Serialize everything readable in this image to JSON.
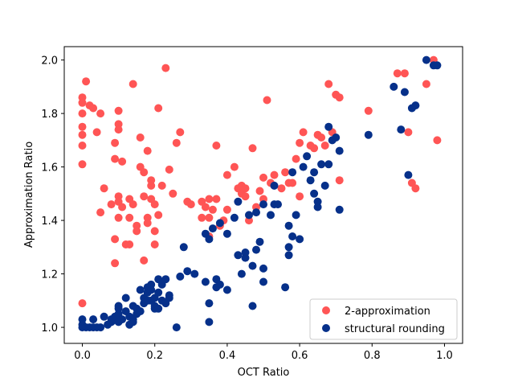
{
  "chart_data": {
    "type": "scatter",
    "title": "",
    "xlabel": "OCT Ratio",
    "ylabel": "Approximation Ratio",
    "xlim": [
      -0.05,
      1.05
    ],
    "ylim": [
      0.94,
      2.05
    ],
    "xticks": [
      0.0,
      0.2,
      0.4,
      0.6,
      0.8,
      1.0
    ],
    "xtick_labels": [
      "0.0",
      "0.2",
      "0.4",
      "0.6",
      "0.8",
      "1.0"
    ],
    "yticks": [
      1.0,
      1.2,
      1.4,
      1.6,
      1.8,
      2.0
    ],
    "ytick_labels": [
      "1.0",
      "1.2",
      "1.4",
      "1.6",
      "1.8",
      "2.0"
    ],
    "grid": false,
    "legend_position": "bottom-right",
    "series": [
      {
        "name": "2-approximation",
        "color": "#ff5555",
        "points": [
          [
            0.0,
            1.84
          ],
          [
            0.0,
            1.86
          ],
          [
            0.0,
            1.8
          ],
          [
            0.0,
            1.75
          ],
          [
            0.0,
            1.72
          ],
          [
            0.0,
            1.68
          ],
          [
            0.0,
            1.61
          ],
          [
            0.0,
            1.09
          ],
          [
            0.01,
            1.92
          ],
          [
            0.02,
            1.83
          ],
          [
            0.03,
            1.82
          ],
          [
            0.04,
            1.73
          ],
          [
            0.05,
            1.8
          ],
          [
            0.05,
            1.43
          ],
          [
            0.06,
            1.52
          ],
          [
            0.08,
            1.46
          ],
          [
            0.09,
            1.69
          ],
          [
            0.09,
            1.63
          ],
          [
            0.1,
            1.81
          ],
          [
            0.1,
            1.76
          ],
          [
            0.1,
            1.74
          ],
          [
            0.1,
            1.49
          ],
          [
            0.1,
            1.47
          ],
          [
            0.1,
            1.41
          ],
          [
            0.09,
            1.33
          ],
          [
            0.09,
            1.24
          ],
          [
            0.11,
            1.62
          ],
          [
            0.11,
            1.45
          ],
          [
            0.12,
            1.31
          ],
          [
            0.13,
            1.31
          ],
          [
            0.13,
            1.48
          ],
          [
            0.13,
            1.41
          ],
          [
            0.14,
            1.46
          ],
          [
            0.14,
            1.91
          ],
          [
            0.15,
            1.38
          ],
          [
            0.15,
            1.36
          ],
          [
            0.16,
            1.71
          ],
          [
            0.16,
            1.6
          ],
          [
            0.17,
            1.58
          ],
          [
            0.17,
            1.49
          ],
          [
            0.17,
            1.25
          ],
          [
            0.18,
            1.66
          ],
          [
            0.18,
            1.41
          ],
          [
            0.18,
            1.39
          ],
          [
            0.19,
            1.53
          ],
          [
            0.19,
            1.55
          ],
          [
            0.19,
            1.48
          ],
          [
            0.2,
            1.36
          ],
          [
            0.2,
            1.31
          ],
          [
            0.2,
            1.46
          ],
          [
            0.21,
            1.82
          ],
          [
            0.21,
            1.42
          ],
          [
            0.22,
            1.53
          ],
          [
            0.23,
            1.97
          ],
          [
            0.24,
            1.59
          ],
          [
            0.25,
            1.5
          ],
          [
            0.26,
            1.69
          ],
          [
            0.27,
            1.73
          ],
          [
            0.29,
            1.47
          ],
          [
            0.3,
            1.46
          ],
          [
            0.33,
            1.41
          ],
          [
            0.33,
            1.47
          ],
          [
            0.34,
            1.45
          ],
          [
            0.35,
            1.41
          ],
          [
            0.35,
            1.48
          ],
          [
            0.35,
            1.34
          ],
          [
            0.36,
            1.44
          ],
          [
            0.37,
            1.48
          ],
          [
            0.37,
            1.68
          ],
          [
            0.38,
            1.38
          ],
          [
            0.39,
            1.4
          ],
          [
            0.4,
            1.57
          ],
          [
            0.4,
            1.44
          ],
          [
            0.42,
            1.6
          ],
          [
            0.43,
            1.52
          ],
          [
            0.44,
            1.5
          ],
          [
            0.44,
            1.53
          ],
          [
            0.45,
            1.52
          ],
          [
            0.45,
            1.49
          ],
          [
            0.46,
            1.4
          ],
          [
            0.47,
            1.67
          ],
          [
            0.48,
            1.45
          ],
          [
            0.49,
            1.51
          ],
          [
            0.5,
            1.56
          ],
          [
            0.5,
            1.48
          ],
          [
            0.51,
            1.85
          ],
          [
            0.52,
            1.54
          ],
          [
            0.53,
            1.57
          ],
          [
            0.55,
            1.52
          ],
          [
            0.56,
            1.58
          ],
          [
            0.57,
            1.54
          ],
          [
            0.58,
            1.54
          ],
          [
            0.59,
            1.63
          ],
          [
            0.6,
            1.49
          ],
          [
            0.6,
            1.69
          ],
          [
            0.61,
            1.73
          ],
          [
            0.63,
            1.68
          ],
          [
            0.64,
            1.67
          ],
          [
            0.65,
            1.72
          ],
          [
            0.66,
            1.71
          ],
          [
            0.67,
            1.68
          ],
          [
            0.68,
            1.91
          ],
          [
            0.69,
            1.73
          ],
          [
            0.7,
            1.87
          ],
          [
            0.71,
            1.86
          ],
          [
            0.71,
            1.55
          ],
          [
            0.79,
            1.81
          ],
          [
            0.87,
            1.95
          ],
          [
            0.89,
            1.95
          ],
          [
            0.9,
            1.73
          ],
          [
            0.91,
            1.54
          ],
          [
            0.92,
            1.52
          ],
          [
            0.95,
            1.91
          ],
          [
            0.97,
            2.0
          ],
          [
            0.98,
            1.7
          ]
        ]
      },
      {
        "name": "structural rounding",
        "color": "#06308a",
        "points": [
          [
            0.0,
            1.0
          ],
          [
            0.0,
            1.01
          ],
          [
            0.0,
            1.03
          ],
          [
            0.01,
            1.0
          ],
          [
            0.02,
            1.0
          ],
          [
            0.03,
            1.0
          ],
          [
            0.04,
            1.0
          ],
          [
            0.05,
            1.0
          ],
          [
            0.03,
            1.03
          ],
          [
            0.06,
            1.04
          ],
          [
            0.07,
            1.01
          ],
          [
            0.08,
            1.02
          ],
          [
            0.08,
            1.03
          ],
          [
            0.09,
            1.03
          ],
          [
            0.09,
            1.04
          ],
          [
            0.1,
            1.05
          ],
          [
            0.1,
            1.07
          ],
          [
            0.1,
            1.08
          ],
          [
            0.1,
            1.02
          ],
          [
            0.11,
            1.03
          ],
          [
            0.12,
            1.06
          ],
          [
            0.12,
            1.11
          ],
          [
            0.13,
            1.04
          ],
          [
            0.13,
            1.01
          ],
          [
            0.14,
            1.03
          ],
          [
            0.14,
            1.02
          ],
          [
            0.14,
            1.08
          ],
          [
            0.15,
            1.07
          ],
          [
            0.15,
            1.05
          ],
          [
            0.16,
            1.14
          ],
          [
            0.16,
            1.06
          ],
          [
            0.17,
            1.09
          ],
          [
            0.17,
            1.11
          ],
          [
            0.18,
            1.1
          ],
          [
            0.18,
            1.13
          ],
          [
            0.18,
            1.15
          ],
          [
            0.19,
            1.16
          ],
          [
            0.19,
            1.14
          ],
          [
            0.19,
            1.1
          ],
          [
            0.2,
            1.08
          ],
          [
            0.2,
            1.07
          ],
          [
            0.2,
            1.11
          ],
          [
            0.21,
            1.13
          ],
          [
            0.21,
            1.18
          ],
          [
            0.21,
            1.07
          ],
          [
            0.22,
            1.1
          ],
          [
            0.22,
            1.16
          ],
          [
            0.23,
            1.18
          ],
          [
            0.23,
            1.09
          ],
          [
            0.24,
            1.11
          ],
          [
            0.24,
            1.12
          ],
          [
            0.26,
            1.0
          ],
          [
            0.27,
            1.19
          ],
          [
            0.28,
            1.3
          ],
          [
            0.29,
            1.21
          ],
          [
            0.31,
            1.2
          ],
          [
            0.34,
            1.35
          ],
          [
            0.34,
            1.17
          ],
          [
            0.35,
            1.09
          ],
          [
            0.35,
            1.02
          ],
          [
            0.35,
            1.33
          ],
          [
            0.36,
            1.37
          ],
          [
            0.37,
            1.15
          ],
          [
            0.37,
            1.18
          ],
          [
            0.38,
            1.16
          ],
          [
            0.38,
            1.39
          ],
          [
            0.4,
            1.35
          ],
          [
            0.4,
            1.14
          ],
          [
            0.42,
            1.41
          ],
          [
            0.43,
            1.27
          ],
          [
            0.43,
            1.47
          ],
          [
            0.44,
            1.2
          ],
          [
            0.45,
            1.28
          ],
          [
            0.45,
            1.26
          ],
          [
            0.46,
            1.42
          ],
          [
            0.47,
            1.23
          ],
          [
            0.47,
            1.08
          ],
          [
            0.48,
            1.43
          ],
          [
            0.48,
            1.29
          ],
          [
            0.49,
            1.32
          ],
          [
            0.5,
            1.46
          ],
          [
            0.5,
            1.22
          ],
          [
            0.5,
            1.17
          ],
          [
            0.52,
            1.42
          ],
          [
            0.53,
            1.46
          ],
          [
            0.53,
            1.53
          ],
          [
            0.54,
            1.46
          ],
          [
            0.56,
            1.15
          ],
          [
            0.57,
            1.3
          ],
          [
            0.57,
            1.27
          ],
          [
            0.57,
            1.38
          ],
          [
            0.58,
            1.58
          ],
          [
            0.58,
            1.34
          ],
          [
            0.59,
            1.42
          ],
          [
            0.6,
            1.33
          ],
          [
            0.61,
            1.6
          ],
          [
            0.62,
            1.64
          ],
          [
            0.63,
            1.55
          ],
          [
            0.64,
            1.58
          ],
          [
            0.64,
            1.5
          ],
          [
            0.65,
            1.47
          ],
          [
            0.65,
            1.45
          ],
          [
            0.66,
            1.61
          ],
          [
            0.67,
            1.53
          ],
          [
            0.68,
            1.75
          ],
          [
            0.68,
            1.61
          ],
          [
            0.69,
            1.7
          ],
          [
            0.7,
            1.71
          ],
          [
            0.71,
            1.66
          ],
          [
            0.71,
            1.44
          ],
          [
            0.79,
            1.72
          ],
          [
            0.86,
            1.9
          ],
          [
            0.88,
            1.74
          ],
          [
            0.89,
            1.88
          ],
          [
            0.9,
            1.57
          ],
          [
            0.91,
            1.82
          ],
          [
            0.92,
            1.83
          ],
          [
            0.95,
            2.0
          ],
          [
            0.97,
            1.98
          ],
          [
            0.98,
            1.98
          ]
        ]
      }
    ]
  }
}
